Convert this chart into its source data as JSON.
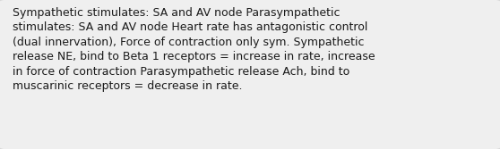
{
  "text": "Sympathetic stimulates: SA and AV node Parasympathetic\nstimulates: SA and AV node Heart rate has antagonistic control\n(dual innervation), Force of contraction only sym. Sympathetic\nrelease NE, bind to Beta 1 receptors = increase in rate, increase\nin force of contraction Parasympathetic release Ach, bind to\nmuscarinic receptors = decrease in rate.",
  "background_color": "#d8d8d8",
  "box_color": "#efefef",
  "text_color": "#1a1a1a",
  "font_size": 9.0,
  "fig_width": 5.58,
  "fig_height": 1.67,
  "dpi": 100
}
